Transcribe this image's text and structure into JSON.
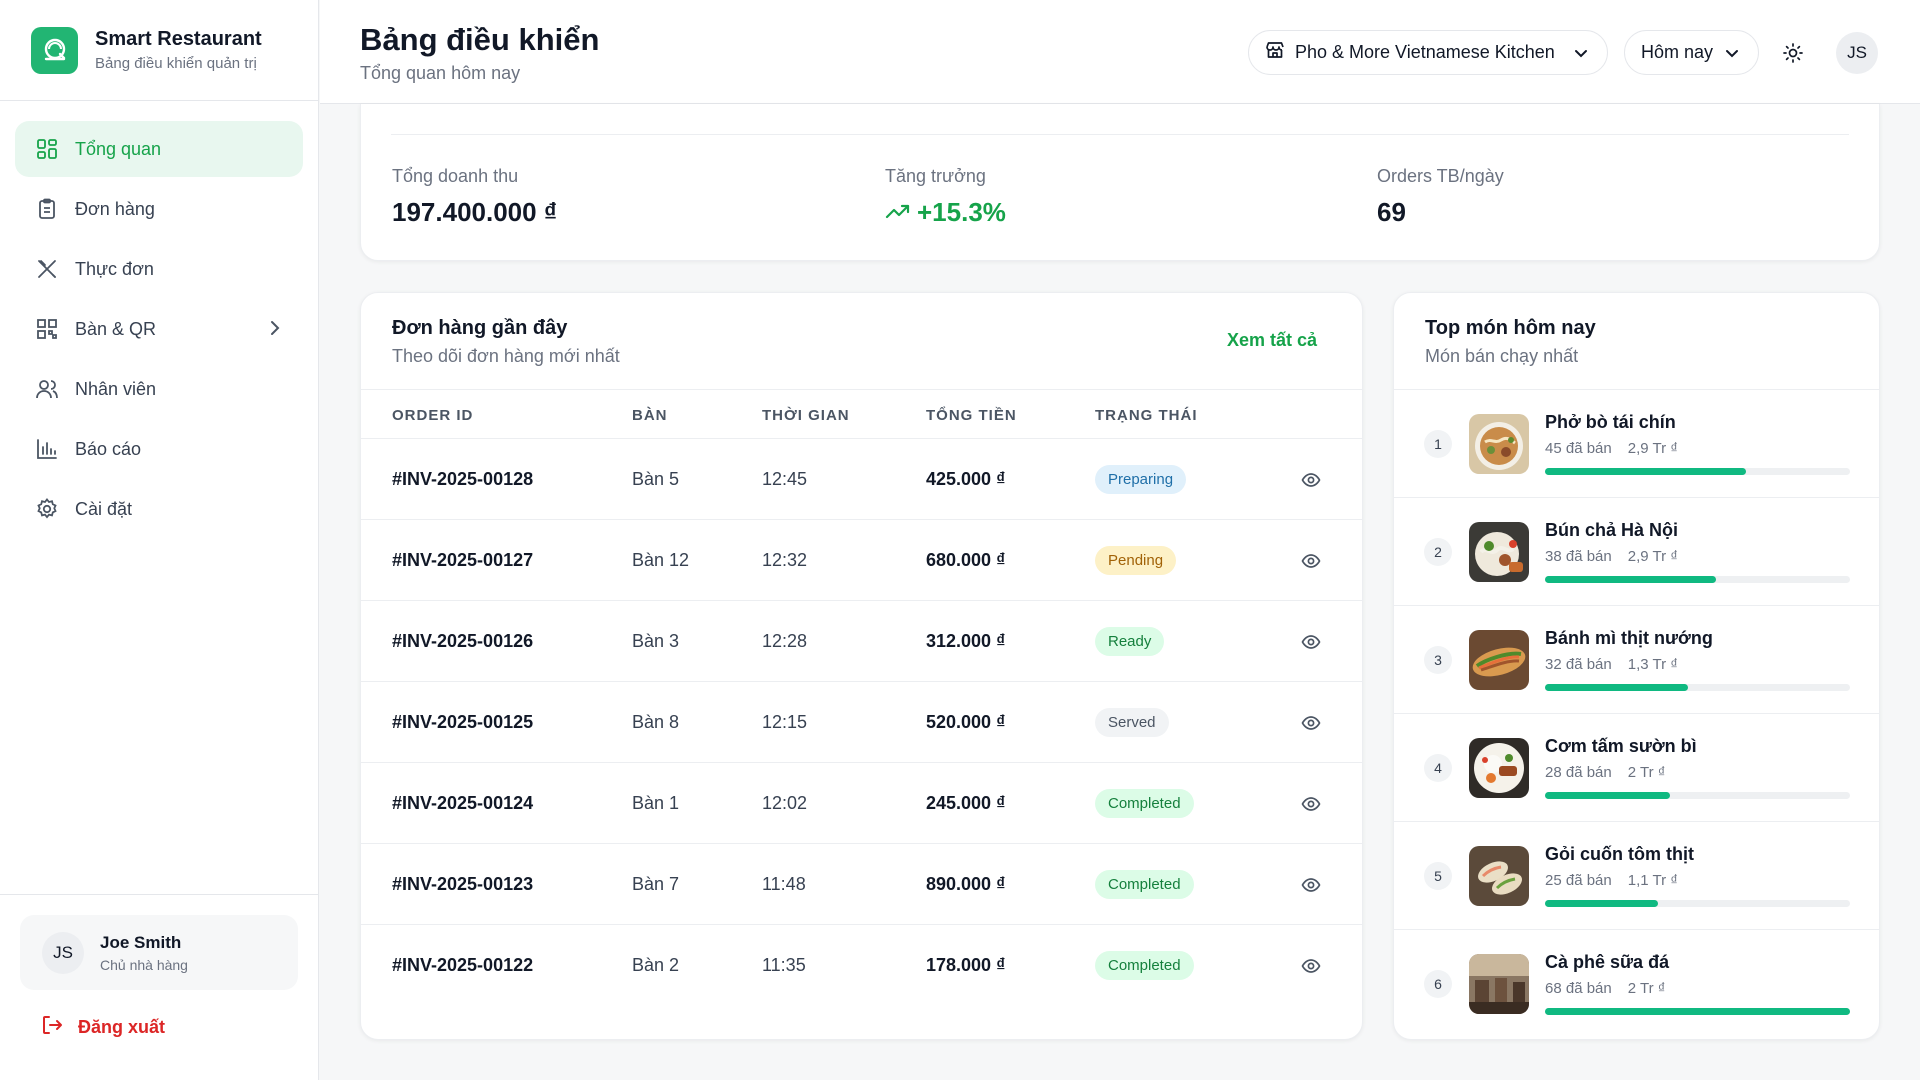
{
  "brand": {
    "title": "Smart Restaurant",
    "subtitle": "Bảng điều khiển quản trị"
  },
  "nav": [
    {
      "label": "Tổng quan",
      "icon": "grid-icon",
      "active": true
    },
    {
      "label": "Đơn hàng",
      "icon": "clipboard-icon"
    },
    {
      "label": "Thực đơn",
      "icon": "utensils-icon"
    },
    {
      "label": "Bàn & QR",
      "icon": "qr-icon",
      "has_chevron": true
    },
    {
      "label": "Nhân viên",
      "icon": "users-icon"
    },
    {
      "label": "Báo cáo",
      "icon": "bar-chart-icon"
    },
    {
      "label": "Cài đặt",
      "icon": "gear-icon"
    }
  ],
  "user": {
    "initials": "JS",
    "name": "Joe Smith",
    "role": "Chủ nhà hàng",
    "logout_label": "Đăng xuất"
  },
  "header": {
    "title": "Bảng điều khiển",
    "subtitle": "Tổng quan hôm nay",
    "restaurant": "Pho & More Vietnamese Kitchen",
    "date_range": "Hôm nay",
    "avatar_initials": "JS"
  },
  "stats": [
    {
      "label": "Tổng doanh thu",
      "value": "197.400.000 ₫"
    },
    {
      "label": "Tăng trưởng",
      "value": "+15.3%",
      "color": "#16a34a"
    },
    {
      "label": "Orders TB/ngày",
      "value": "69"
    }
  ],
  "orders": {
    "title": "Đơn hàng gần đây",
    "subtitle": "Theo dõi đơn hàng mới nhất",
    "see_all": "Xem tất cả",
    "columns": [
      "ORDER ID",
      "BÀN",
      "THỜI GIAN",
      "TỔNG TIỀN",
      "TRẠNG THÁI"
    ],
    "rows": [
      {
        "id": "#INV-2025-00128",
        "table": "Bàn 5",
        "time": "12:45",
        "total": "425.000 ₫",
        "status": "Preparing"
      },
      {
        "id": "#INV-2025-00127",
        "table": "Bàn 12",
        "time": "12:32",
        "total": "680.000 ₫",
        "status": "Pending"
      },
      {
        "id": "#INV-2025-00126",
        "table": "Bàn 3",
        "time": "12:28",
        "total": "312.000 ₫",
        "status": "Ready"
      },
      {
        "id": "#INV-2025-00125",
        "table": "Bàn 8",
        "time": "12:15",
        "total": "520.000 ₫",
        "status": "Served"
      },
      {
        "id": "#INV-2025-00124",
        "table": "Bàn 1",
        "time": "12:02",
        "total": "245.000 ₫",
        "status": "Completed"
      },
      {
        "id": "#INV-2025-00123",
        "table": "Bàn 7",
        "time": "11:48",
        "total": "890.000 ₫",
        "status": "Completed"
      },
      {
        "id": "#INV-2025-00122",
        "table": "Bàn 2",
        "time": "11:35",
        "total": "178.000 ₫",
        "status": "Completed"
      }
    ],
    "status_colors": {
      "Preparing": {
        "bg": "#e0f0fb",
        "fg": "#1f6fa8"
      },
      "Pending": {
        "bg": "#fdf1c7",
        "fg": "#a16207"
      },
      "Ready": {
        "bg": "#dcfce7",
        "fg": "#15803d"
      },
      "Served": {
        "bg": "#f1f3f5",
        "fg": "#4b5563"
      },
      "Completed": {
        "bg": "#dcfce7",
        "fg": "#15803d"
      }
    }
  },
  "top_dishes": {
    "title": "Top món hôm nay",
    "subtitle": "Món bán chạy nhất",
    "items": [
      {
        "rank": "1",
        "name": "Phở bò tái chín",
        "sold": "45 đã bán",
        "revenue": "2,9 Tr ₫",
        "share": 0.66,
        "thumb": "pho"
      },
      {
        "rank": "2",
        "name": "Bún chả Hà Nội",
        "sold": "38 đã bán",
        "revenue": "2,9 Tr ₫",
        "share": 0.56,
        "thumb": "bun-cha"
      },
      {
        "rank": "3",
        "name": "Bánh mì thịt nướng",
        "sold": "32 đã bán",
        "revenue": "1,3 Tr ₫",
        "share": 0.47,
        "thumb": "banh-mi"
      },
      {
        "rank": "4",
        "name": "Cơm tấm sườn bì",
        "sold": "28 đã bán",
        "revenue": "2 Tr ₫",
        "share": 0.41,
        "thumb": "com-tam"
      },
      {
        "rank": "5",
        "name": "Gỏi cuốn tôm thịt",
        "sold": "25 đã bán",
        "revenue": "1,1 Tr ₫",
        "share": 0.37,
        "thumb": "goi-cuon"
      },
      {
        "rank": "6",
        "name": "Cà phê sữa đá",
        "sold": "68 đã bán",
        "revenue": "2 Tr ₫",
        "share": 1.0,
        "thumb": "ca-phe"
      }
    ]
  },
  "colors": {
    "accent": "#16a34a",
    "bar": "#10b981",
    "danger": "#dc2626"
  }
}
